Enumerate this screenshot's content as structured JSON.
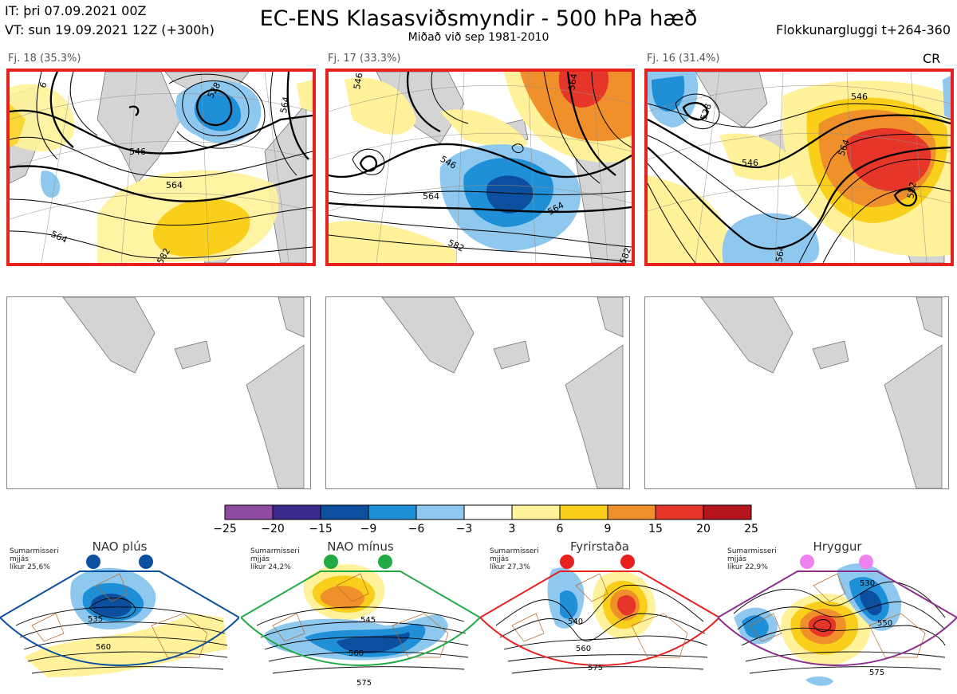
{
  "header": {
    "it": "IT: þri 07.09.2021 00Z",
    "vt": "VT: sun 19.09.2021 12Z  (+300h)",
    "title": "EC-ENS Klasasviðsmyndir - 500 hPa hæð",
    "subtitle": "Miðað við sep 1981-2010",
    "window": "Flokkunargluggi t+264-360",
    "tag": "CR"
  },
  "clusters": [
    {
      "label": "Fj. 18 (35.3%)",
      "contours": [
        "546",
        "528",
        "564",
        "564",
        "564",
        "582",
        "6"
      ]
    },
    {
      "label": "Fj. 17 (33.3%)",
      "contours": [
        "546",
        "546",
        "564",
        "564",
        "564",
        "582",
        "582"
      ]
    },
    {
      "label": "Fj. 16 (31.4%)",
      "contours": [
        "546",
        "528",
        "546",
        "564",
        "582",
        "564"
      ]
    }
  ],
  "chart_data": {
    "type": "heatmap",
    "title": "EC-ENS Klasasviðsmyndir - 500 hPa hæð",
    "colorbar": {
      "ticks": [
        "−25",
        "−20",
        "−15",
        "−9",
        "−6",
        "−3",
        "3",
        "6",
        "9",
        "15",
        "20",
        "25"
      ],
      "colors": [
        "#8e4a9e",
        "#3a2a8e",
        "#0b4f9e",
        "#1f8fd8",
        "#8fc8ee",
        "#ffffff",
        "#fff29a",
        "#f9cf1b",
        "#f0902a",
        "#e63529",
        "#b4141b"
      ]
    },
    "regimes": [
      {
        "name": "NAO plús",
        "info": [
          "Sumarmisseri",
          "mjjás",
          "líkur 25,6%"
        ],
        "probability": 25.6,
        "color": "#0b4f9e",
        "contours": [
          "535",
          "560"
        ]
      },
      {
        "name": "NAO mínus",
        "info": [
          "Sumarmisseri",
          "mjjás",
          "líkur 24,2%"
        ],
        "probability": 24.2,
        "color": "#22aa44",
        "contours": [
          "545",
          "560",
          "575"
        ]
      },
      {
        "name": "Fyrirstaða",
        "info": [
          "Sumarmisseri",
          "mjjás",
          "líkur 27,3%"
        ],
        "probability": 27.3,
        "color": "#e8201f",
        "contours": [
          "540",
          "560",
          "575"
        ]
      },
      {
        "name": "Hryggur",
        "info": [
          "Sumarmisseri",
          "mjjás",
          "líkur 22,9%"
        ],
        "probability": 22.9,
        "color": "#8b2e8f",
        "contours": [
          "530",
          "550",
          "575"
        ]
      }
    ]
  }
}
